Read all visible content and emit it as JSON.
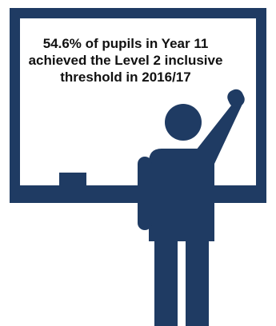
{
  "statistic": {
    "line1": "54.6% of pupils in Year 11",
    "line2": "achieved the Level 2 inclusive",
    "line3": "threshold in 2016/17"
  },
  "colors": {
    "navy": "#1f3b63",
    "board_face": "#ffffff",
    "text": "#111111"
  },
  "icons": {
    "figure": "teacher-pointing-icon",
    "board": "whiteboard-icon"
  }
}
